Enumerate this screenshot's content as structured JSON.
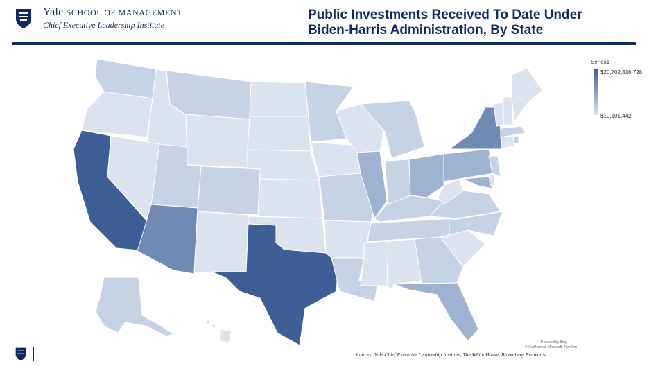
{
  "header": {
    "yale": "Yale",
    "school": "SCHOOL OF MANAGEMENT",
    "institute": "Chief Executive Leadership Institute"
  },
  "title": {
    "line1": "Public Investments Received To Date Under",
    "line2": "Biden-Harris Administration, By State"
  },
  "legend": {
    "title": "Series1",
    "max": "$20,702,816,728",
    "min": "$10,101,442"
  },
  "credits": {
    "powered": "Powered by Bing",
    "copyright": "© GeoNames, Microsoft, TomTom"
  },
  "sources": "Sources: Yale Chief Executive Leadership Institute, The White House, Bloomberg Estimates",
  "colors": {
    "navy": "#0f2a5c",
    "darkest": "#3d5f95",
    "dark": "#6f8ab5",
    "mid": "#9fb2d0",
    "light": "#c6d3e5",
    "lightest": "#dbe3ef"
  }
}
